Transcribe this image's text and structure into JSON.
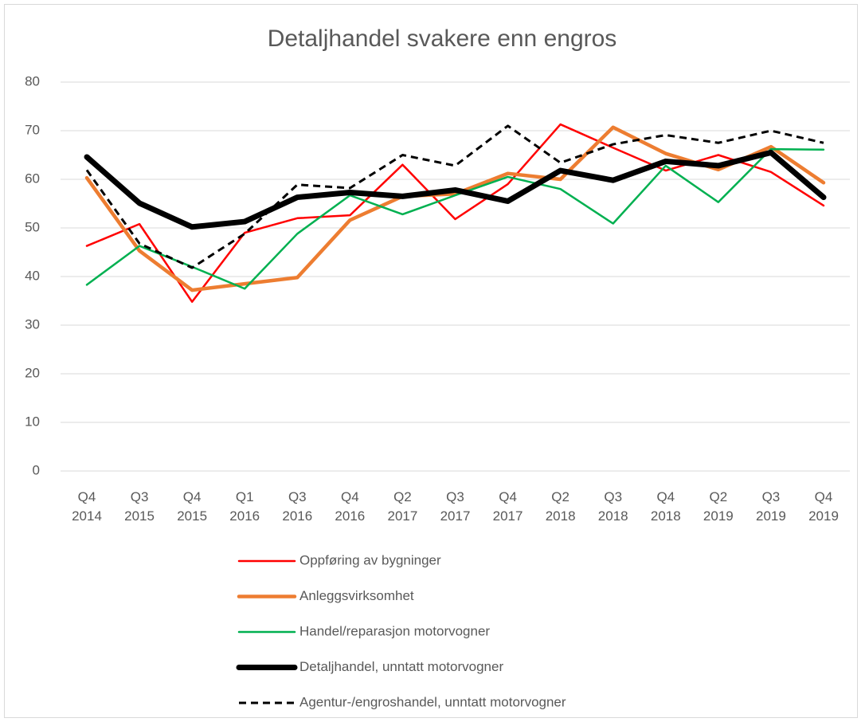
{
  "chart_data": {
    "type": "line",
    "title": "Detaljhandel svakere enn engros",
    "categories": [
      "Q4 2014",
      "Q3 2015",
      "Q4 2015",
      "Q1 2016",
      "Q3 2016",
      "Q4 2016",
      "Q2 2017",
      "Q3 2017",
      "Q4 2017",
      "Q2 2018",
      "Q3 2018",
      "Q4 2018",
      "Q2 2019",
      "Q3 2019",
      "Q4 2019"
    ],
    "series": [
      {
        "name": "Oppføring av bygninger",
        "color": "#ff0000",
        "values": [
          46.3,
          50.8,
          34.8,
          49,
          52,
          52.6,
          63,
          51.8,
          59,
          71.3,
          66.5,
          61.8,
          65,
          61.5,
          54.6
        ]
      },
      {
        "name": "Anleggsvirksomhet",
        "color": "#ed7d31",
        "values": [
          60.3,
          45.3,
          37.2,
          38.5,
          39.8,
          51.6,
          56.5,
          57,
          61.2,
          60,
          70.7,
          65.3,
          62,
          66.7,
          59.3
        ]
      },
      {
        "name": "Handel/reparasjon motorvogner",
        "color": "#00b050",
        "values": [
          38.3,
          46.3,
          42,
          37.5,
          48.8,
          56.7,
          52.8,
          56.7,
          60.5,
          58,
          50.9,
          62.8,
          55.3,
          66.2,
          66.1
        ]
      },
      {
        "name": "Detaljhandel, unntatt motorvogner",
        "color": "#000000",
        "values": [
          64.6,
          55.1,
          50.2,
          51.3,
          56.3,
          57.3,
          56.5,
          57.8,
          55.5,
          61.8,
          59.8,
          63.7,
          62.8,
          65.5,
          56.3
        ]
      },
      {
        "name": "Agentur-/engroshandel, unntatt motorvogner",
        "color": "#000000",
        "values": [
          61.9,
          46.8,
          41.8,
          48.8,
          58.9,
          58.2,
          65,
          62.8,
          71,
          63.4,
          67.2,
          69.1,
          67.5,
          70,
          67.5
        ]
      }
    ],
    "ylim": [
      0,
      80
    ],
    "yticks": [
      0,
      10,
      20,
      30,
      40,
      50,
      60,
      70,
      80
    ],
    "grid": true,
    "legend": "bottom"
  }
}
